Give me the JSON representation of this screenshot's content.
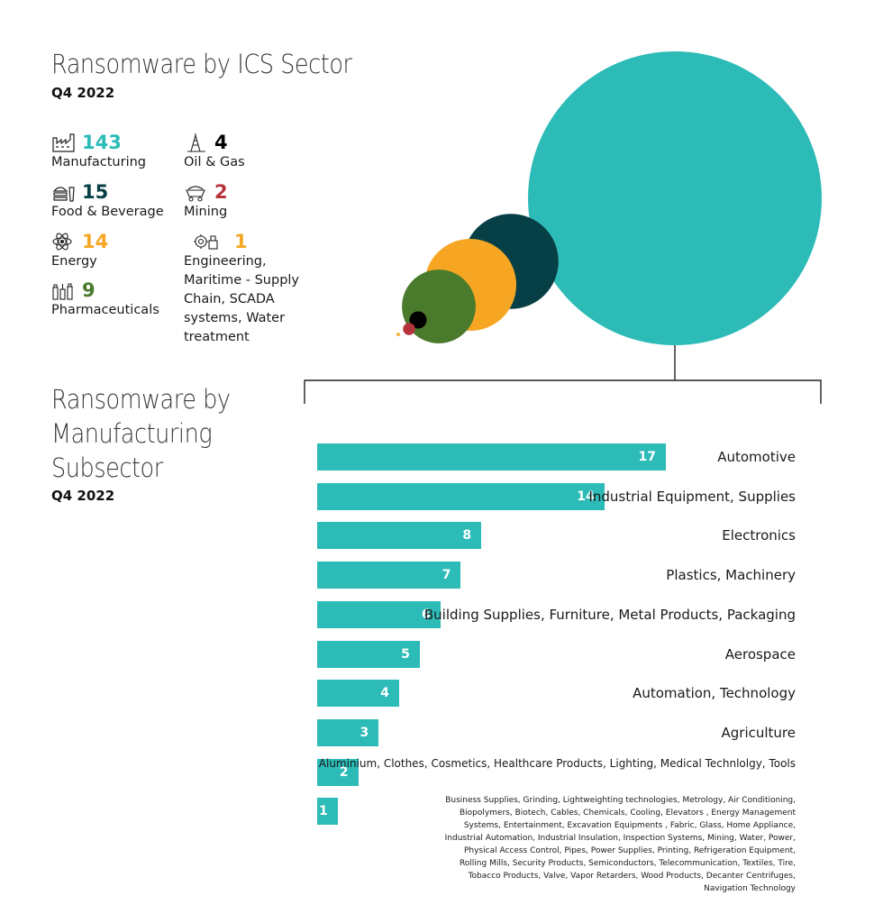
{
  "sector_section": {
    "title": "Ransomware by ICS Sector",
    "period": "Q4 2022"
  },
  "subsector_section": {
    "title_lines": [
      "Ransomware by",
      "Manufacturing",
      "Subsector"
    ],
    "period": "Q4 2022"
  },
  "colors": {
    "teal": "#2cbbb7",
    "dark_teal": "#073f46",
    "orange": "#f6a623",
    "green": "#4a7a2c",
    "black": "#000000",
    "red": "#b5343c"
  },
  "chart_data": [
    {
      "type": "bubble",
      "title": "Ransomware by ICS Sector",
      "subtitle": "Q4 2022",
      "series": [
        {
          "name": "Manufacturing",
          "value": 143,
          "color": "#2cbbb7",
          "icon": "factory-icon"
        },
        {
          "name": "Food & Beverage",
          "value": 15,
          "color": "#073f46",
          "icon": "food-beverage-icon"
        },
        {
          "name": "Energy",
          "value": 14,
          "color": "#f6a623",
          "icon": "atom-icon"
        },
        {
          "name": "Pharmaceuticals",
          "value": 9,
          "color": "#4a7a2c",
          "icon": "pharma-icon"
        },
        {
          "name": "Oil & Gas",
          "value": 4,
          "color": "#000000",
          "icon": "oil-rig-icon"
        },
        {
          "name": "Mining",
          "value": 2,
          "color": "#b5343c",
          "icon": "mining-cart-icon"
        },
        {
          "name": "Engineering, Maritime - Supply Chain, SCADA systems, Water treatment",
          "value": 1,
          "color": "#f6a623",
          "icon": "gears-icon"
        }
      ]
    },
    {
      "type": "bar",
      "orientation": "horizontal",
      "title": "Ransomware by Manufacturing Subsector",
      "subtitle": "Q4 2022",
      "categories": [
        "Automotive",
        "Industrial Equipment, Supplies",
        "Electronics",
        "Plastics, Machinery",
        "Building Supplies, Furniture, Metal Products, Packaging",
        "Aerospace",
        "Automation, Technology",
        "Agriculture",
        "Aluminium, Clothes, Cosmetics, Healthcare Products, Lighting, Medical Technlolgy, Tools",
        "Business Supplies, Grinding, Lightweighting technologies, Metrology, Air Conditioning, Biopolymers, Biotech, Cables, Chemicals, Cooling, Elevators , Energy Management Systems,  Entertainment, Excavation Equipments , Fabric, Glass, Home Appliance, Industrial Automation, Industrial Insulation, Inspection Systems, Mining, Water, Power, Physical Access Control, Pipes, Power Supplies, Printing, Refrigeration Equipment, Rolling Mills, Security Products, Semiconductors, Telecommunication, Textiles, Tire, Tobacco Products, Valve, Vapor Retarders, Wood Products, Decanter Centrifuges, Navigation Technology"
      ],
      "values": [
        17,
        14,
        8,
        7,
        6,
        5,
        4,
        3,
        2,
        1
      ],
      "color": "#2cbbb7"
    }
  ]
}
